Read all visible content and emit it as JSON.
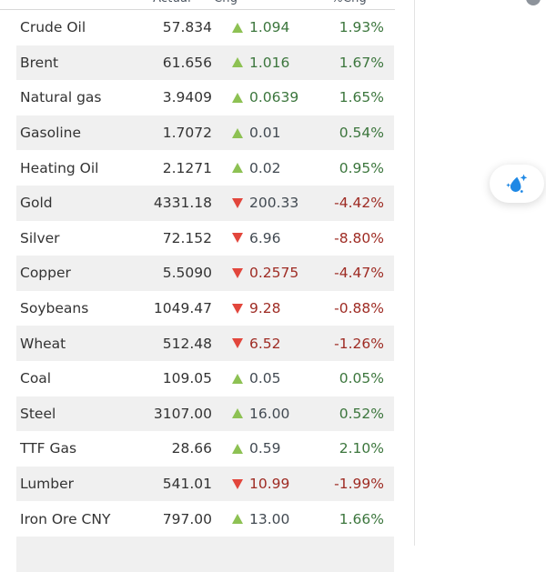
{
  "header": {
    "actual": "Actual",
    "chg": "Chg",
    "pct": "%Chg"
  },
  "rows": [
    {
      "name": "Crude Oil",
      "actual": "57.834",
      "chg": "1.094",
      "dir": "up",
      "chg_color": "green",
      "pct": "1.93%",
      "pct_color": "green"
    },
    {
      "name": "Brent",
      "actual": "61.656",
      "chg": "1.016",
      "dir": "up",
      "chg_color": "green",
      "pct": "1.67%",
      "pct_color": "green"
    },
    {
      "name": "Natural gas",
      "actual": "3.9409",
      "chg": "0.0639",
      "dir": "up",
      "chg_color": "green",
      "pct": "1.65%",
      "pct_color": "green"
    },
    {
      "name": "Gasoline",
      "actual": "1.7072",
      "chg": "0.01",
      "dir": "up",
      "chg_color": "neutral",
      "pct": "0.54%",
      "pct_color": "green"
    },
    {
      "name": "Heating Oil",
      "actual": "2.1271",
      "chg": "0.02",
      "dir": "up",
      "chg_color": "neutral",
      "pct": "0.95%",
      "pct_color": "green"
    },
    {
      "name": "Gold",
      "actual": "4331.18",
      "chg": "200.33",
      "dir": "down",
      "chg_color": "neutral",
      "pct": "-4.42%",
      "pct_color": "red"
    },
    {
      "name": "Silver",
      "actual": "72.152",
      "chg": "6.96",
      "dir": "down",
      "chg_color": "neutral",
      "pct": "-8.80%",
      "pct_color": "red"
    },
    {
      "name": "Copper",
      "actual": "5.5090",
      "chg": "0.2575",
      "dir": "down",
      "chg_color": "red",
      "pct": "-4.47%",
      "pct_color": "red"
    },
    {
      "name": "Soybeans",
      "actual": "1049.47",
      "chg": "9.28",
      "dir": "down",
      "chg_color": "red",
      "pct": "-0.88%",
      "pct_color": "red"
    },
    {
      "name": "Wheat",
      "actual": "512.48",
      "chg": "6.52",
      "dir": "down",
      "chg_color": "red",
      "pct": "-1.26%",
      "pct_color": "red"
    },
    {
      "name": "Coal",
      "actual": "109.05",
      "chg": "0.05",
      "dir": "up",
      "chg_color": "neutral",
      "pct": "0.05%",
      "pct_color": "green"
    },
    {
      "name": "Steel",
      "actual": "3107.00",
      "chg": "16.00",
      "dir": "up",
      "chg_color": "neutral",
      "pct": "0.52%",
      "pct_color": "green"
    },
    {
      "name": "TTF Gas",
      "actual": "28.66",
      "chg": "0.59",
      "dir": "up",
      "chg_color": "neutral",
      "pct": "2.10%",
      "pct_color": "green"
    },
    {
      "name": "Lumber",
      "actual": "541.01",
      "chg": "10.99",
      "dir": "down",
      "chg_color": "red",
      "pct": "-1.99%",
      "pct_color": "red"
    },
    {
      "name": "Iron Ore CNY",
      "actual": "797.00",
      "chg": "13.00",
      "dir": "up",
      "chg_color": "neutral",
      "pct": "1.66%",
      "pct_color": "green"
    }
  ],
  "colors": {
    "green": "#3c763d",
    "red": "#9e2b23",
    "neutral": "#424a52",
    "up_triangle": "#8dc153",
    "down_triangle": "#e2463c",
    "stripe": "#f0f0f0",
    "accent_blue": "#1e88e5"
  },
  "floating_button": {
    "icon": "water-drop-sparkles"
  }
}
